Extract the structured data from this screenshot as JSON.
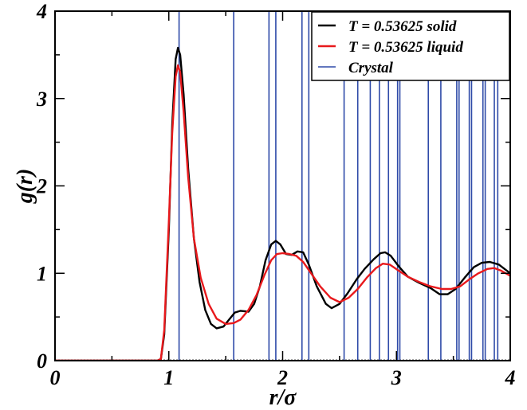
{
  "chart_data": {
    "type": "line",
    "xlabel": "r/σ",
    "ylabel": "g(r)",
    "xlim": [
      0,
      4
    ],
    "ylim": [
      0,
      4
    ],
    "xticks": [
      "0",
      "1",
      "2",
      "3",
      "4"
    ],
    "yticks": [
      "0",
      "1",
      "2",
      "3",
      "4"
    ],
    "grid": false,
    "legend_position": "top-right",
    "series": [
      {
        "name": "T = 0.53625 solid",
        "color": "#000000",
        "points": [
          [
            0,
            0
          ],
          [
            0.9,
            0
          ],
          [
            0.93,
            0.02
          ],
          [
            0.96,
            0.3
          ],
          [
            1.0,
            1.5
          ],
          [
            1.03,
            2.7
          ],
          [
            1.06,
            3.45
          ],
          [
            1.08,
            3.58
          ],
          [
            1.1,
            3.5
          ],
          [
            1.13,
            3.05
          ],
          [
            1.17,
            2.2
          ],
          [
            1.22,
            1.4
          ],
          [
            1.27,
            0.9
          ],
          [
            1.32,
            0.58
          ],
          [
            1.37,
            0.42
          ],
          [
            1.42,
            0.37
          ],
          [
            1.48,
            0.39
          ],
          [
            1.53,
            0.47
          ],
          [
            1.58,
            0.55
          ],
          [
            1.63,
            0.57
          ],
          [
            1.7,
            0.56
          ],
          [
            1.75,
            0.65
          ],
          [
            1.8,
            0.85
          ],
          [
            1.85,
            1.15
          ],
          [
            1.9,
            1.33
          ],
          [
            1.94,
            1.37
          ],
          [
            1.98,
            1.33
          ],
          [
            2.03,
            1.22
          ],
          [
            2.08,
            1.21
          ],
          [
            2.13,
            1.25
          ],
          [
            2.18,
            1.24
          ],
          [
            2.23,
            1.1
          ],
          [
            2.3,
            0.85
          ],
          [
            2.38,
            0.65
          ],
          [
            2.43,
            0.6
          ],
          [
            2.5,
            0.65
          ],
          [
            2.57,
            0.77
          ],
          [
            2.65,
            0.93
          ],
          [
            2.72,
            1.05
          ],
          [
            2.8,
            1.16
          ],
          [
            2.86,
            1.23
          ],
          [
            2.9,
            1.24
          ],
          [
            2.95,
            1.2
          ],
          [
            3.02,
            1.08
          ],
          [
            3.1,
            0.96
          ],
          [
            3.2,
            0.89
          ],
          [
            3.3,
            0.83
          ],
          [
            3.38,
            0.76
          ],
          [
            3.45,
            0.76
          ],
          [
            3.52,
            0.82
          ],
          [
            3.6,
            0.95
          ],
          [
            3.68,
            1.07
          ],
          [
            3.75,
            1.12
          ],
          [
            3.82,
            1.13
          ],
          [
            3.9,
            1.1
          ],
          [
            4.0,
            1.0
          ]
        ]
      },
      {
        "name": "T = 0.53625 liquid",
        "color": "#e8191c",
        "points": [
          [
            0,
            0
          ],
          [
            0.9,
            0
          ],
          [
            0.93,
            0.02
          ],
          [
            0.96,
            0.35
          ],
          [
            1.0,
            1.6
          ],
          [
            1.03,
            2.6
          ],
          [
            1.06,
            3.25
          ],
          [
            1.08,
            3.38
          ],
          [
            1.1,
            3.3
          ],
          [
            1.13,
            2.85
          ],
          [
            1.17,
            2.1
          ],
          [
            1.22,
            1.4
          ],
          [
            1.28,
            0.95
          ],
          [
            1.35,
            0.65
          ],
          [
            1.42,
            0.48
          ],
          [
            1.5,
            0.42
          ],
          [
            1.57,
            0.43
          ],
          [
            1.63,
            0.47
          ],
          [
            1.7,
            0.58
          ],
          [
            1.77,
            0.75
          ],
          [
            1.84,
            0.98
          ],
          [
            1.9,
            1.15
          ],
          [
            1.95,
            1.22
          ],
          [
            2.0,
            1.23
          ],
          [
            2.06,
            1.22
          ],
          [
            2.12,
            1.2
          ],
          [
            2.18,
            1.13
          ],
          [
            2.25,
            1.0
          ],
          [
            2.33,
            0.85
          ],
          [
            2.42,
            0.72
          ],
          [
            2.5,
            0.67
          ],
          [
            2.58,
            0.72
          ],
          [
            2.66,
            0.82
          ],
          [
            2.74,
            0.95
          ],
          [
            2.82,
            1.06
          ],
          [
            2.88,
            1.11
          ],
          [
            2.94,
            1.1
          ],
          [
            3.02,
            1.03
          ],
          [
            3.1,
            0.96
          ],
          [
            3.2,
            0.9
          ],
          [
            3.3,
            0.85
          ],
          [
            3.4,
            0.82
          ],
          [
            3.48,
            0.82
          ],
          [
            3.56,
            0.85
          ],
          [
            3.64,
            0.93
          ],
          [
            3.72,
            1.0
          ],
          [
            3.8,
            1.05
          ],
          [
            3.86,
            1.06
          ],
          [
            3.92,
            1.03
          ],
          [
            4.0,
            0.97
          ]
        ]
      },
      {
        "name": "Crystal",
        "color": "#2e4aa8",
        "type": "vlines",
        "x": [
          1.09,
          1.57,
          1.88,
          1.94,
          2.17,
          2.23,
          2.54,
          2.66,
          2.77,
          2.85,
          2.93,
          3.01,
          3.03,
          3.28,
          3.39,
          3.53,
          3.55,
          3.64,
          3.66,
          3.76,
          3.78,
          3.86,
          3.89
        ]
      }
    ]
  }
}
